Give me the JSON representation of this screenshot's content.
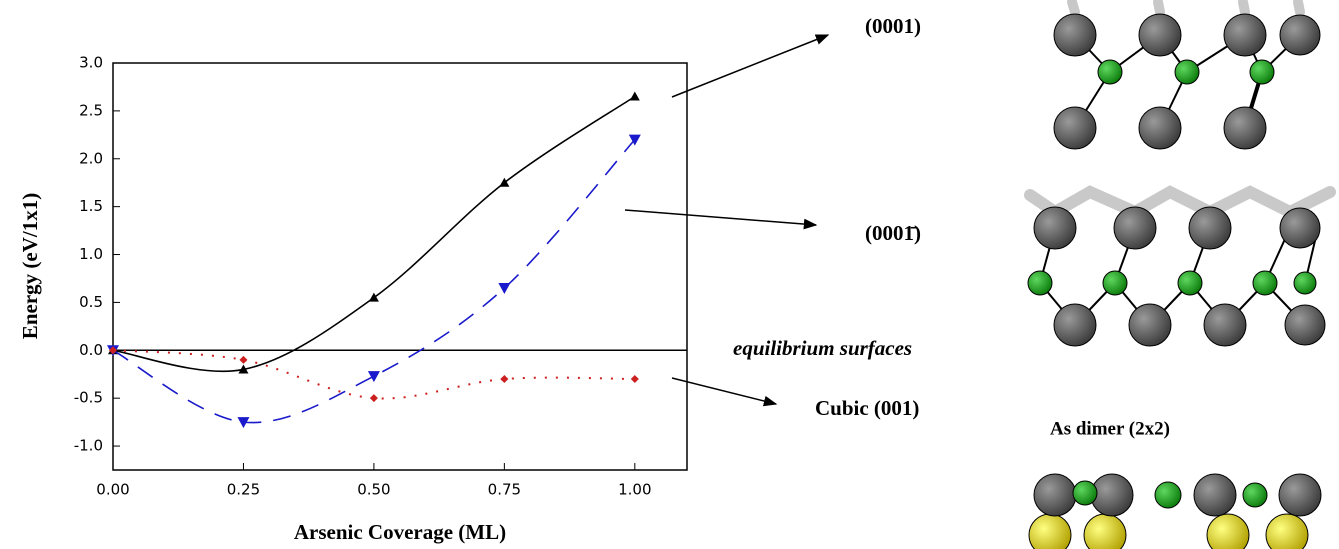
{
  "chart_data": {
    "type": "line",
    "x_label": "Arsenic Coverage (ML)",
    "y_label": "Energy (eV/1x1)",
    "x": [
      0,
      0.25,
      0.5,
      0.75,
      1.0
    ],
    "series": [
      {
        "name": "(0001)",
        "color": "#000000",
        "values": [
          0,
          -0.2,
          0.55,
          1.75,
          2.65
        ]
      },
      {
        "name": "(0001̄)",
        "color": "#1a1acc",
        "values": [
          0,
          -0.75,
          -0.27,
          0.65,
          2.2
        ]
      },
      {
        "name": "Cubic (001)",
        "color": "#cc2020",
        "values": [
          0,
          -0.1,
          -0.5,
          -0.3,
          -0.3
        ]
      }
    ],
    "xlim": [
      0,
      1.1
    ],
    "ylim": [
      -1.25,
      3.0
    ],
    "xticks": [
      {
        "value": 0,
        "label": "0.00"
      },
      {
        "value": 0.25,
        "label": "0.25"
      },
      {
        "value": 0.5,
        "label": "0.50"
      },
      {
        "value": 0.75,
        "label": "0.75"
      },
      {
        "value": 1,
        "label": "1.00"
      }
    ],
    "yticks": [
      {
        "value": 3,
        "label": "3.0"
      },
      {
        "value": 2.5,
        "label": "2.5"
      },
      {
        "value": 2,
        "label": "2.0"
      },
      {
        "value": 1.5,
        "label": "1.5"
      },
      {
        "value": 1,
        "label": "1.0"
      },
      {
        "value": 0.5,
        "label": "0.5"
      },
      {
        "value": 0,
        "label": "0.0"
      },
      {
        "value": -0.5,
        "label": "-0.5"
      },
      {
        "value": -1,
        "label": "-1.0"
      }
    ],
    "annotations": [
      "equilibrium surfaces",
      "As dimer (2x2)"
    ]
  }
}
